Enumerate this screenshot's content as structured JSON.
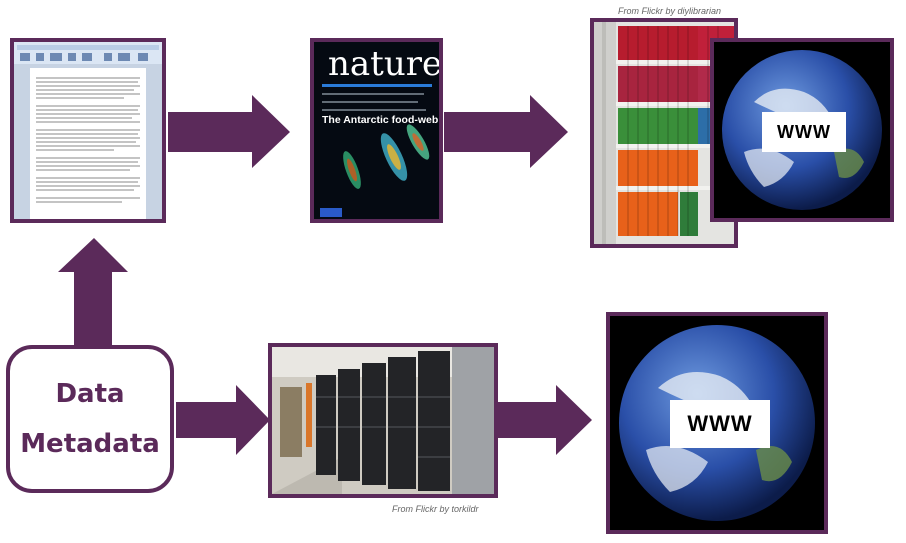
{
  "source": {
    "line1": "Data",
    "line2": "Metadata"
  },
  "journal": {
    "masthead": "nature",
    "cover_headline": "The Antarctic food-web"
  },
  "captions": {
    "library": "From Flickr by diylibrarian",
    "servers": "From Flickr by torkildr"
  },
  "web_labels": {
    "top": "WWW",
    "bottom": "WWW"
  },
  "colors": {
    "frame": "#5b2a5a",
    "arrow": "#5b2a5a"
  }
}
